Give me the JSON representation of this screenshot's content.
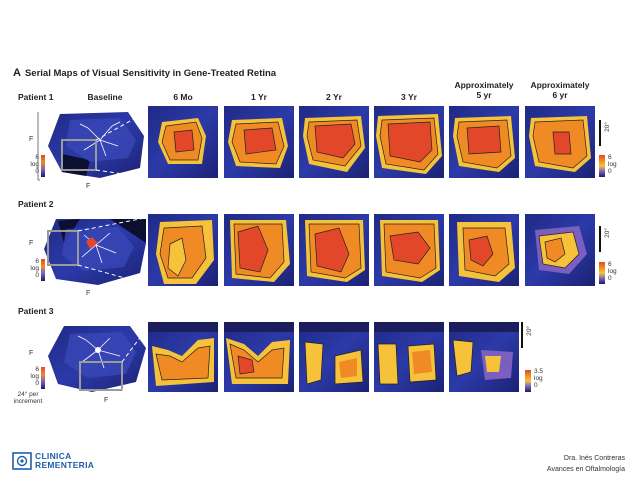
{
  "figure": {
    "letter": "A",
    "title": "Serial Maps of Visual Sensitivity in Gene-Treated Retina"
  },
  "columns": [
    {
      "label": "Baseline"
    },
    {
      "label": "6 Mo"
    },
    {
      "label": "1 Yr"
    },
    {
      "label": "2 Yr"
    },
    {
      "label": "3 Yr"
    },
    {
      "label_line1": "Approximately",
      "label_line2": "5 yr"
    },
    {
      "label_line1": "Approximately",
      "label_line2": "6 yr"
    }
  ],
  "rows": [
    {
      "label": "Patient 1",
      "scale_bar": "20°",
      "colorbar_max": "6",
      "colorbar_unit": "log",
      "colorbar_min": "0"
    },
    {
      "label": "Patient 2",
      "scale_bar": "20°",
      "colorbar_max": "6",
      "colorbar_unit": "log",
      "colorbar_min": "0"
    },
    {
      "label": "Patient 3",
      "scale_bar": "20°",
      "colorbar_max": "3.5",
      "colorbar_unit": "log",
      "colorbar_min": "0"
    }
  ],
  "baseline_axes": {
    "y_label": "F",
    "x_label": "F",
    "legend_max": "6",
    "legend_unit": "log",
    "legend_min": "0",
    "increment_line1": "24° per",
    "increment_line2": "increment"
  },
  "footer": {
    "logo_line1": "CLINICA",
    "logo_line2": "REMENTERIA",
    "author": "Dra. Inés Contreras",
    "event": "Avances en Oftalmología"
  },
  "colors": {
    "bg_blue": "#2a2f8f",
    "dark_navy": "#1b1d5e",
    "purple": "#5a4bb0",
    "orange": "#f08a24",
    "red": "#e2472a",
    "yellow": "#f5c23a",
    "logo_blue": "#1f5fa8"
  }
}
